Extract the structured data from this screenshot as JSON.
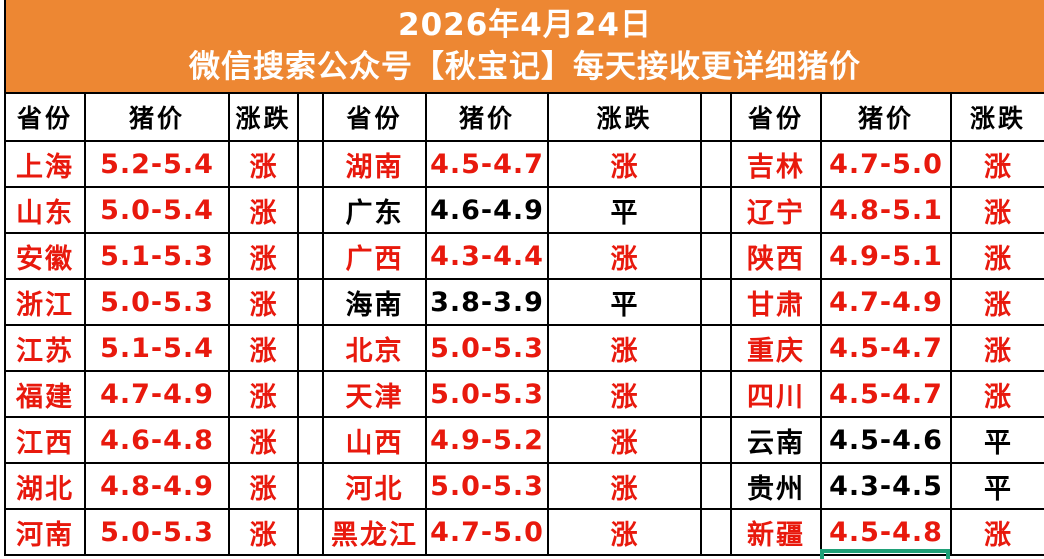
{
  "banner": {
    "date": "2026年4月24日",
    "subtitle": "微信搜索公众号【秋宝记】每天接收更详细猪价"
  },
  "columns": {
    "province": "省份",
    "price": "猪价",
    "trend": "涨跌"
  },
  "colors": {
    "banner_bg": "#ED8733",
    "banner_text": "#FFFFFF",
    "rise_text": "#E8190D",
    "flat_text": "#000000",
    "grid_border": "#000000",
    "selection_outline": "#1FA077"
  },
  "table": {
    "groups": [
      {
        "rows": [
          {
            "province": "上海",
            "price": "5.2-5.4",
            "trend": "涨",
            "status": "rise"
          },
          {
            "province": "山东",
            "price": "5.0-5.4",
            "trend": "涨",
            "status": "rise"
          },
          {
            "province": "安徽",
            "price": "5.1-5.3",
            "trend": "涨",
            "status": "rise"
          },
          {
            "province": "浙江",
            "price": "5.0-5.3",
            "trend": "涨",
            "status": "rise"
          },
          {
            "province": "江苏",
            "price": "5.1-5.4",
            "trend": "涨",
            "status": "rise"
          },
          {
            "province": "福建",
            "price": "4.7-4.9",
            "trend": "涨",
            "status": "rise"
          },
          {
            "province": "江西",
            "price": "4.6-4.8",
            "trend": "涨",
            "status": "rise"
          },
          {
            "province": "湖北",
            "price": "4.8-4.9",
            "trend": "涨",
            "status": "rise"
          },
          {
            "province": "河南",
            "price": "5.0-5.3",
            "trend": "涨",
            "status": "rise"
          }
        ]
      },
      {
        "rows": [
          {
            "province": "湖南",
            "price": "4.5-4.7",
            "trend": "涨",
            "status": "rise"
          },
          {
            "province": "广东",
            "price": "4.6-4.9",
            "trend": "平",
            "status": "flat"
          },
          {
            "province": "广西",
            "price": "4.3-4.4",
            "trend": "涨",
            "status": "rise"
          },
          {
            "province": "海南",
            "price": "3.8-3.9",
            "trend": "平",
            "status": "flat"
          },
          {
            "province": "北京",
            "price": "5.0-5.3",
            "trend": "涨",
            "status": "rise"
          },
          {
            "province": "天津",
            "price": "5.0-5.3",
            "trend": "涨",
            "status": "rise"
          },
          {
            "province": "山西",
            "price": "4.9-5.2",
            "trend": "涨",
            "status": "rise"
          },
          {
            "province": "河北",
            "price": "5.0-5.3",
            "trend": "涨",
            "status": "rise"
          },
          {
            "province": "黑龙江",
            "price": "4.7-5.0",
            "trend": "涨",
            "status": "rise"
          }
        ]
      },
      {
        "rows": [
          {
            "province": "吉林",
            "price": "4.7-5.0",
            "trend": "涨",
            "status": "rise"
          },
          {
            "province": "辽宁",
            "price": "4.8-5.1",
            "trend": "涨",
            "status": "rise"
          },
          {
            "province": "陕西",
            "price": "4.9-5.1",
            "trend": "涨",
            "status": "rise"
          },
          {
            "province": "甘肃",
            "price": "4.7-4.9",
            "trend": "涨",
            "status": "rise"
          },
          {
            "province": "重庆",
            "price": "4.5-4.7",
            "trend": "涨",
            "status": "rise"
          },
          {
            "province": "四川",
            "price": "4.5-4.7",
            "trend": "涨",
            "status": "rise"
          },
          {
            "province": "云南",
            "price": "4.5-4.6",
            "trend": "平",
            "status": "flat"
          },
          {
            "province": "贵州",
            "price": "4.3-4.5",
            "trend": "平",
            "status": "flat"
          },
          {
            "province": "新疆",
            "price": "4.5-4.8",
            "trend": "涨",
            "status": "rise"
          }
        ]
      }
    ]
  }
}
